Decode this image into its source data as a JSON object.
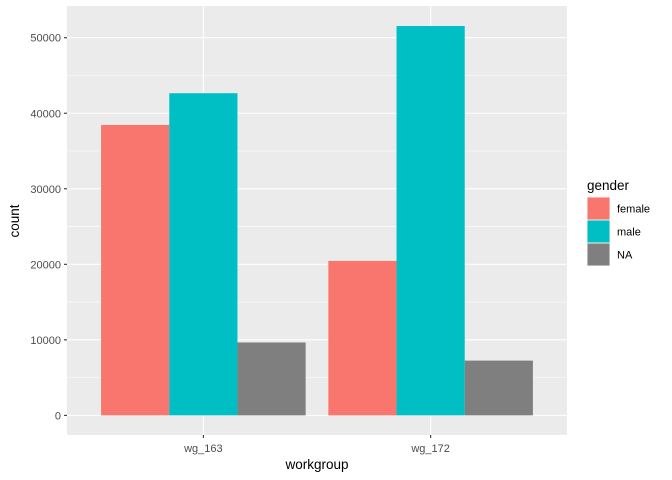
{
  "chart_data": {
    "type": "bar",
    "categories": [
      "wg_163",
      "wg_172"
    ],
    "series": [
      {
        "name": "female",
        "values": [
          38450,
          20450
        ],
        "color": "#F8766D"
      },
      {
        "name": "male",
        "values": [
          42650,
          51550
        ],
        "color": "#00BFC4"
      },
      {
        "name": "NA",
        "values": [
          9650,
          7250
        ],
        "color": "#7F7F7F"
      }
    ],
    "xlabel": "workgroup",
    "ylabel": "count",
    "ylim": [
      -2600,
      54200
    ],
    "yticks": [
      0,
      10000,
      20000,
      30000,
      40000,
      50000
    ],
    "ytick_labels": [
      "0",
      "10000",
      "20000",
      "30000",
      "40000",
      "50000"
    ],
    "legend": {
      "title": "gender",
      "position": "right"
    },
    "panel_background": "#EBEBEB",
    "grid": true
  }
}
